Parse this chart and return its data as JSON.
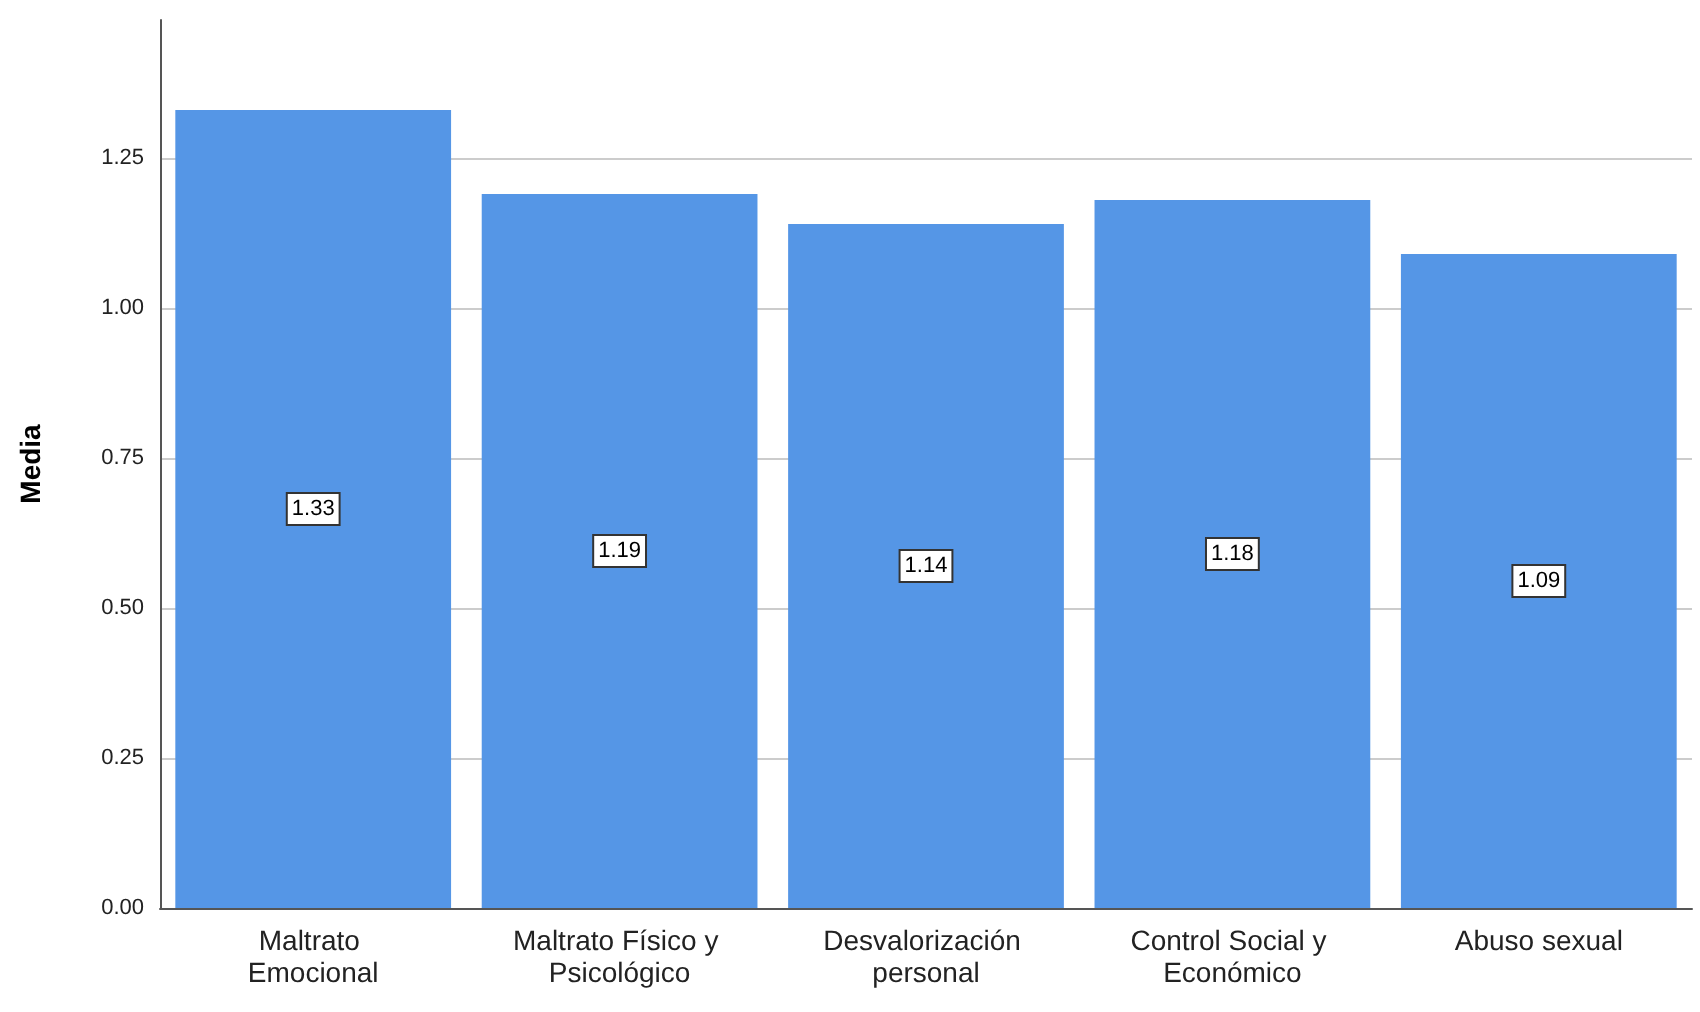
{
  "chart_data": {
    "type": "bar",
    "ylabel": "Media",
    "categories": [
      "Maltrato Emocional",
      "Maltrato Físico y Psicológico",
      "Desvalorización personal",
      "Control Social y Económico",
      "Abuso sexual"
    ],
    "values": [
      1.33,
      1.19,
      1.14,
      1.18,
      1.09
    ],
    "color": "#5596e6",
    "ylim": [
      0,
      1.48
    ],
    "yticks": [
      {
        "value": 0,
        "label": "0.00"
      },
      0.25,
      {
        "value": 0.5,
        "label": "0.50"
      },
      0.75,
      {
        "value": 1,
        "label": "1.00"
      },
      1.25
    ],
    "grid": "y",
    "data_labels": true
  }
}
